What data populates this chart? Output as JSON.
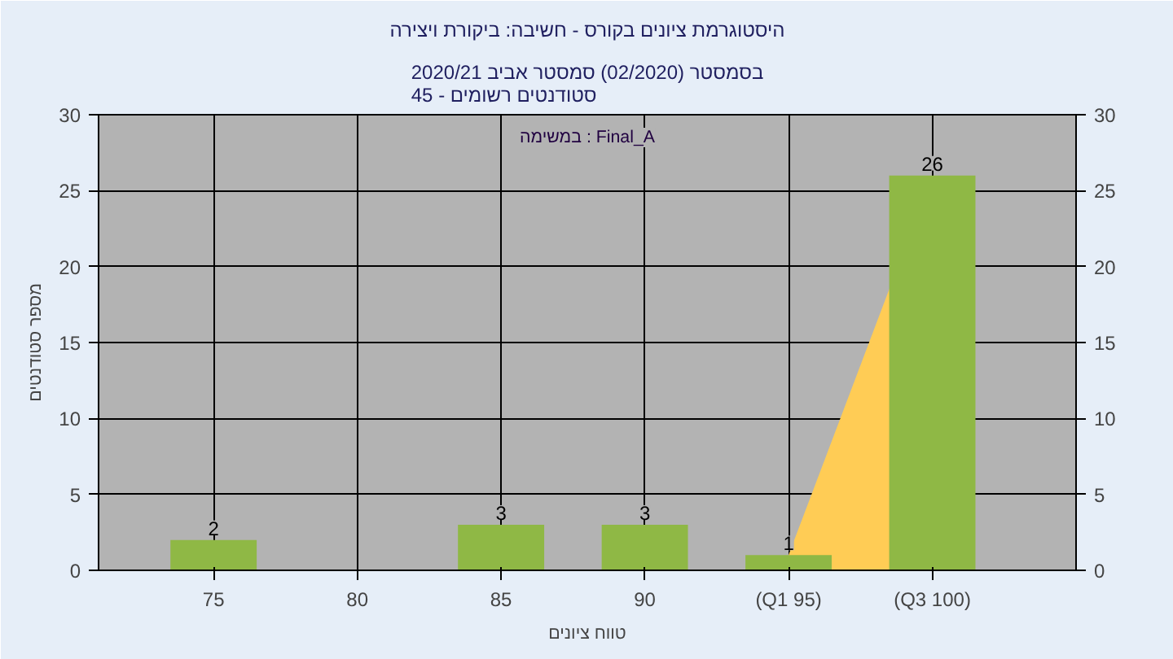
{
  "chart_data": {
    "type": "bar",
    "title": "היסטוגרמת ציונים בקורס - חשיבה: ביקורת ויצירה",
    "subtitle": "בסמסטר (02/2020) סמסטר אביב 2020/21\nסטודנטים רשומים - 45",
    "xlabel": "טווח ציונים",
    "ylabel": "מספר סטודנטים",
    "annotations": [
      "במשימה : Final_A"
    ],
    "categories": [
      "75",
      "80",
      "85",
      "90",
      "(Q1 95)",
      "(Q3 100)"
    ],
    "series": [
      {
        "type": "area",
        "color": "#ffcc55",
        "values": [
          null,
          null,
          null,
          null,
          1,
          26
        ]
      },
      {
        "color": "#8fb845",
        "values": [
          2,
          0,
          3,
          3,
          1,
          26
        ],
        "value_labels": [
          "2",
          null,
          "3",
          "3",
          "1",
          "26"
        ]
      }
    ],
    "ylim": [
      0,
      30
    ],
    "yticks": [
      0,
      5,
      10,
      15,
      20,
      25,
      30
    ],
    "y2lim": [
      0,
      30
    ],
    "y2ticks": [
      0,
      5,
      10,
      15,
      20,
      25,
      30
    ],
    "grid": true
  }
}
